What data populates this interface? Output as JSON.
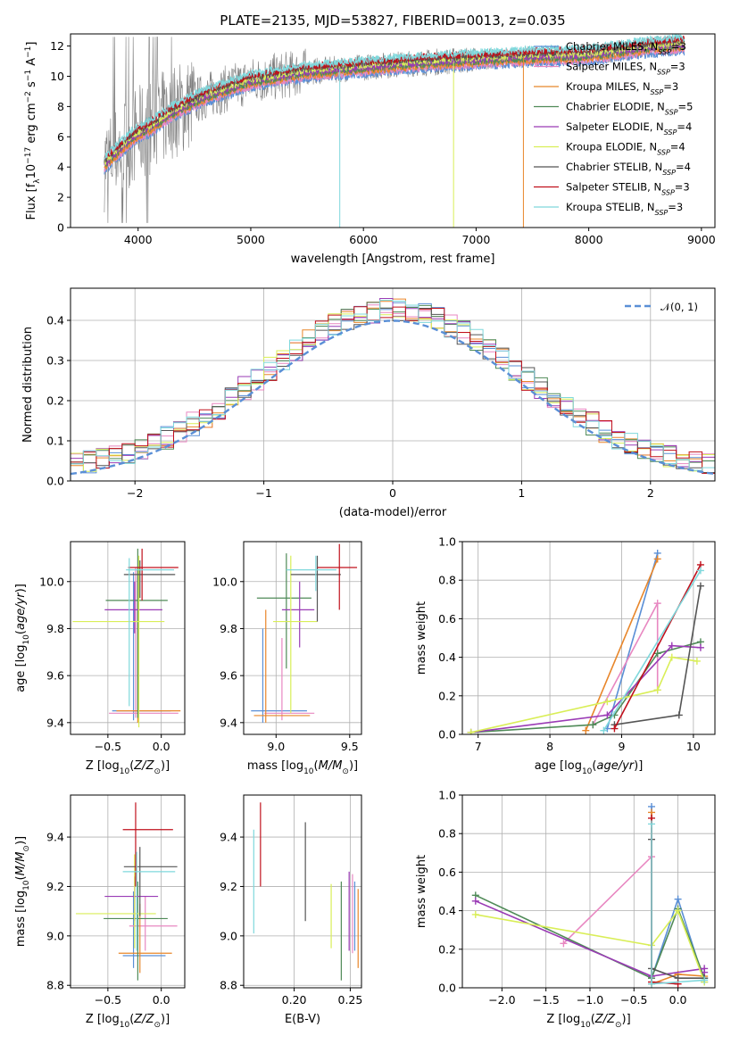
{
  "figure_title": "PLATE=2135, MJD=53827, FIBERID=0013, z=0.035",
  "colors": {
    "Chabrier MILES": "#5a8fd6",
    "Salpeter MILES": "#e887c1",
    "Kroupa MILES": "#e8862a",
    "Chabrier ELODIE": "#4f8a57",
    "Salpeter ELODIE": "#9a3bb5",
    "Kroupa ELODIE": "#d9ee57",
    "Chabrier STELIB": "#555555",
    "Salpeter STELIB": "#c0101c",
    "Kroupa STELIB": "#7fd8dc",
    "data": "#808080",
    "normal": "#5a8fd6"
  },
  "legend": [
    {
      "name": "Chabrier MILES",
      "label": "Chabrier MILES, N",
      "sub": "SSP",
      "tail": "=3"
    },
    {
      "name": "Salpeter MILES",
      "label": "Salpeter MILES, N",
      "sub": "SSP",
      "tail": "=3"
    },
    {
      "name": "Kroupa MILES",
      "label": "Kroupa MILES, N",
      "sub": "SSP",
      "tail": "=3"
    },
    {
      "name": "Chabrier ELODIE",
      "label": "Chabrier ELODIE, N",
      "sub": "SSP",
      "tail": "=5"
    },
    {
      "name": "Salpeter ELODIE",
      "label": "Salpeter ELODIE, N",
      "sub": "SSP",
      "tail": "=4"
    },
    {
      "name": "Kroupa ELODIE",
      "label": "Kroupa ELODIE, N",
      "sub": "SSP",
      "tail": "=4"
    },
    {
      "name": "Chabrier STELIB",
      "label": "Chabrier STELIB, N",
      "sub": "SSP",
      "tail": "=4"
    },
    {
      "name": "Salpeter STELIB",
      "label": "Salpeter STELIB, N",
      "sub": "SSP",
      "tail": "=3"
    },
    {
      "name": "Kroupa STELIB",
      "label": "Kroupa STELIB, N",
      "sub": "SSP",
      "tail": "=3"
    }
  ],
  "hist_legend": {
    "label": "𝒩(0, 1)"
  },
  "chart_data": [
    {
      "id": "spectrum",
      "type": "line",
      "xlabel": "wavelength [Angstrom, rest frame]",
      "ylabel": "Flux [f_λ 10^-17 erg cm^-2 s^-1 A^-1]",
      "xlim": [
        3400,
        9120
      ],
      "ylim": [
        0,
        12.8
      ],
      "xticks": [
        4000,
        5000,
        6000,
        7000,
        8000,
        9000
      ],
      "yticks": [
        0,
        2,
        4,
        6,
        8,
        10,
        12
      ],
      "continuum_model": {
        "x": [
          3700,
          3800,
          3950,
          4100,
          4300,
          4600,
          5000,
          5500,
          6000,
          6500,
          7000,
          7500,
          8000,
          8500,
          8800
        ],
        "y": [
          4.2,
          4.9,
          6.0,
          6.6,
          7.6,
          8.7,
          9.7,
          10.3,
          10.6,
          10.9,
          11.1,
          11.3,
          11.4,
          11.9,
          12.1
        ]
      }
    },
    {
      "id": "residual-histogram",
      "type": "bar",
      "xlabel": "(data-model)/error",
      "ylabel": "Normed distribution",
      "xlim": [
        -2.5,
        2.5
      ],
      "ylim": [
        0,
        0.48
      ],
      "xticks": [
        -2,
        -1,
        0,
        1,
        2
      ],
      "yticks": [
        0,
        0.1,
        0.2,
        0.3,
        0.4
      ],
      "bin_width": 0.1,
      "reference": {
        "name": "𝒩(0, 1)",
        "mu": 0,
        "sigma": 1
      }
    },
    {
      "id": "age-vs-Z",
      "type": "scatter",
      "xlabel": "Z [log10(Z/Zsun)]",
      "ylabel": "age [log10(age/yr)]",
      "xlim": [
        -0.85,
        0.22
      ],
      "ylim": [
        9.35,
        10.17
      ],
      "xticks": [
        -0.5,
        0.0
      ],
      "yticks": [
        9.4,
        9.6,
        9.8,
        10.0
      ],
      "points": [
        {
          "model": "Chabrier MILES",
          "x": -0.26,
          "xerr": [
            0.2,
            0.35
          ],
          "y": 9.45,
          "yerr": [
            0.04,
            0.59
          ]
        },
        {
          "model": "Salpeter MILES",
          "x": -0.24,
          "xerr": [
            0.25,
            0.4
          ],
          "y": 9.44,
          "yerr": [
            0.02,
            0.62
          ]
        },
        {
          "model": "Kroupa MILES",
          "x": -0.22,
          "xerr": [
            0.2,
            0.4
          ],
          "y": 9.45,
          "yerr": [
            0.05,
            0.6
          ]
        },
        {
          "model": "Chabrier ELODIE",
          "x": -0.22,
          "xerr": [
            0.3,
            0.28
          ],
          "y": 9.92,
          "yerr": [
            0.5,
            0.22
          ]
        },
        {
          "model": "Salpeter ELODIE",
          "x": -0.25,
          "xerr": [
            0.28,
            0.26
          ],
          "y": 9.88,
          "yerr": [
            0.1,
            0.12
          ]
        },
        {
          "model": "Kroupa ELODIE",
          "x": -0.21,
          "xerr": [
            0.62,
            0.24
          ],
          "y": 9.83,
          "yerr": [
            0.45,
            0.28
          ]
        },
        {
          "model": "Chabrier STELIB",
          "x": -0.2,
          "xerr": [
            0.15,
            0.33
          ],
          "y": 10.03,
          "yerr": [
            0.1,
            0.06
          ]
        },
        {
          "model": "Salpeter STELIB",
          "x": -0.18,
          "xerr": [
            0.13,
            0.34
          ],
          "y": 10.06,
          "yerr": [
            0.14,
            0.08
          ]
        },
        {
          "model": "Kroupa STELIB",
          "x": -0.3,
          "xerr": [
            0.03,
            0.42
          ],
          "y": 10.05,
          "yerr": [
            0.58,
            0.05
          ]
        }
      ]
    },
    {
      "id": "age-vs-mass",
      "type": "scatter",
      "xlabel": "mass [log10(M/Msun)]",
      "ylabel": "",
      "xlim": [
        8.78,
        9.58
      ],
      "ylim": [
        9.35,
        10.17
      ],
      "xticks": [
        9.0,
        9.5
      ],
      "yticks": [
        9.4,
        9.6,
        9.8,
        10.0
      ],
      "points": [
        {
          "model": "Chabrier MILES",
          "x": 8.91,
          "xerr": [
            0.08,
            0.3
          ],
          "y": 9.45,
          "yerr": [
            0.05,
            0.35
          ]
        },
        {
          "model": "Salpeter MILES",
          "x": 9.04,
          "xerr": [
            0.12,
            0.22
          ],
          "y": 9.44,
          "yerr": [
            0.03,
            0.32
          ]
        },
        {
          "model": "Kroupa MILES",
          "x": 8.93,
          "xerr": [
            0.08,
            0.3
          ],
          "y": 9.43,
          "yerr": [
            0.03,
            0.45
          ]
        },
        {
          "model": "Chabrier ELODIE",
          "x": 9.07,
          "xerr": [
            0.2,
            0.17
          ],
          "y": 9.93,
          "yerr": [
            0.3,
            0.19
          ]
        },
        {
          "model": "Salpeter ELODIE",
          "x": 9.16,
          "xerr": [
            0.12,
            0.1
          ],
          "y": 9.88,
          "yerr": [
            0.16,
            0.12
          ]
        },
        {
          "model": "Kroupa ELODIE",
          "x": 9.1,
          "xerr": [
            0.12,
            0.18
          ],
          "y": 9.83,
          "yerr": [
            0.39,
            0.28
          ]
        },
        {
          "model": "Chabrier STELIB",
          "x": 9.28,
          "xerr": [
            0.18,
            0.16
          ],
          "y": 10.03,
          "yerr": [
            0.2,
            0.08
          ]
        },
        {
          "model": "Salpeter STELIB",
          "x": 9.43,
          "xerr": [
            0.15,
            0.12
          ],
          "y": 10.06,
          "yerr": [
            0.18,
            0.1
          ]
        },
        {
          "model": "Kroupa STELIB",
          "x": 9.27,
          "xerr": [
            0.2,
            0.14
          ],
          "y": 10.05,
          "yerr": [
            0.09,
            0.06
          ]
        }
      ]
    },
    {
      "id": "mass-weight-vs-age",
      "type": "line",
      "xlabel": "age [log10(age/yr)]",
      "ylabel": "mass weight",
      "xlim": [
        6.78,
        10.3
      ],
      "ylim": [
        0,
        1
      ],
      "xticks": [
        7,
        8,
        9,
        10
      ],
      "yticks": [
        0,
        0.2,
        0.4,
        0.6,
        0.8,
        1.0
      ],
      "series": [
        {
          "model": "Chabrier MILES",
          "x": [
            8.8,
            9.5
          ],
          "y": [
            0.03,
            0.94
          ]
        },
        {
          "model": "Salpeter MILES",
          "x": [
            8.6,
            9.5,
            9.5
          ],
          "y": [
            0.05,
            0.68,
            0.23
          ]
        },
        {
          "model": "Kroupa MILES",
          "x": [
            8.5,
            9.5
          ],
          "y": [
            0.02,
            0.91
          ]
        },
        {
          "model": "Chabrier ELODIE",
          "x": [
            6.9,
            8.6,
            8.9,
            9.5,
            10.1
          ],
          "y": [
            0.01,
            0.05,
            0.1,
            0.42,
            0.48
          ]
        },
        {
          "model": "Salpeter ELODIE",
          "x": [
            6.9,
            8.8,
            9.7,
            10.1
          ],
          "y": [
            0.01,
            0.1,
            0.46,
            0.45
          ]
        },
        {
          "model": "Kroupa ELODIE",
          "x": [
            6.9,
            8.8,
            9.5,
            9.7,
            10.05
          ],
          "y": [
            0.01,
            0.17,
            0.23,
            0.4,
            0.38
          ]
        },
        {
          "model": "Chabrier STELIB",
          "x": [
            8.9,
            9.8,
            10.1
          ],
          "y": [
            0.05,
            0.1,
            0.77
          ]
        },
        {
          "model": "Salpeter STELIB",
          "x": [
            8.9,
            10.1
          ],
          "y": [
            0.03,
            0.88
          ]
        },
        {
          "model": "Kroupa STELIB",
          "x": [
            8.75,
            10.1
          ],
          "y": [
            0.02,
            0.85
          ]
        }
      ]
    },
    {
      "id": "mass-vs-Z",
      "type": "scatter",
      "xlabel": "Z [log10(Z/Zsun)]",
      "ylabel": "mass [log10(M/Msun)]",
      "xlim": [
        -0.85,
        0.22
      ],
      "ylim": [
        8.79,
        9.57
      ],
      "xticks": [
        -0.5,
        0.0
      ],
      "yticks": [
        8.8,
        9.0,
        9.2,
        9.4
      ],
      "points": [
        {
          "model": "Chabrier MILES",
          "x": -0.26,
          "xerr": [
            0.1,
            0.3
          ],
          "y": 8.92,
          "yerr": [
            0.05,
            0.26
          ]
        },
        {
          "model": "Salpeter MILES",
          "x": -0.15,
          "xerr": [
            0.15,
            0.3
          ],
          "y": 9.04,
          "yerr": [
            0.1,
            0.12
          ]
        },
        {
          "model": "Kroupa MILES",
          "x": -0.2,
          "xerr": [
            0.2,
            0.3
          ],
          "y": 8.93,
          "yerr": [
            0.08,
            0.2
          ]
        },
        {
          "model": "Chabrier ELODIE",
          "x": -0.22,
          "xerr": [
            0.32,
            0.28
          ],
          "y": 9.07,
          "yerr": [
            0.25,
            0.15
          ]
        },
        {
          "model": "Salpeter ELODIE",
          "x": -0.25,
          "xerr": [
            0.28,
            0.22
          ],
          "y": 9.16,
          "yerr": [
            0.1,
            0.08
          ]
        },
        {
          "model": "Kroupa ELODIE",
          "x": -0.25,
          "xerr": [
            0.55,
            0.2
          ],
          "y": 9.09,
          "yerr": [
            0.14,
            0.24
          ]
        },
        {
          "model": "Chabrier STELIB",
          "x": -0.2,
          "xerr": [
            0.15,
            0.35
          ],
          "y": 9.28,
          "yerr": [
            0.2,
            0.08
          ]
        },
        {
          "model": "Salpeter STELIB",
          "x": -0.24,
          "xerr": [
            0.12,
            0.35
          ],
          "y": 9.43,
          "yerr": [
            0.23,
            0.11
          ]
        },
        {
          "model": "Kroupa STELIB",
          "x": -0.23,
          "xerr": [
            0.13,
            0.36
          ],
          "y": 9.26,
          "yerr": [
            0.32,
            0.08
          ]
        }
      ]
    },
    {
      "id": "mass-vs-EBV",
      "type": "scatter",
      "xlabel": "E(B-V)",
      "ylabel": "",
      "xlim": [
        0.155,
        0.26
      ],
      "ylim": [
        8.79,
        9.57
      ],
      "xticks": [
        0.2,
        0.25
      ],
      "yticks": [
        8.8,
        9.0,
        9.2,
        9.4
      ],
      "points": [
        {
          "model": "Chabrier MILES",
          "x": 0.254,
          "y": 9.09,
          "yerr": [
            0.15,
            0.13
          ]
        },
        {
          "model": "Salpeter MILES",
          "x": 0.252,
          "y": 9.06,
          "yerr": [
            0.13,
            0.19
          ]
        },
        {
          "model": "Kroupa MILES",
          "x": 0.257,
          "y": 9.03,
          "yerr": [
            0.16,
            0.16
          ]
        },
        {
          "model": "Chabrier ELODIE",
          "x": 0.242,
          "y": 9.02,
          "yerr": [
            0.2,
            0.2
          ]
        },
        {
          "model": "Salpeter ELODIE",
          "x": 0.249,
          "y": 9.12,
          "yerr": [
            0.18,
            0.14
          ]
        },
        {
          "model": "Kroupa ELODIE",
          "x": 0.233,
          "y": 9.08,
          "yerr": [
            0.13,
            0.13
          ]
        },
        {
          "model": "Chabrier STELIB",
          "x": 0.21,
          "y": 9.26,
          "yerr": [
            0.2,
            0.2
          ]
        },
        {
          "model": "Salpeter STELIB",
          "x": 0.17,
          "y": 9.37,
          "yerr": [
            0.17,
            0.17
          ]
        },
        {
          "model": "Kroupa STELIB",
          "x": 0.164,
          "y": 9.22,
          "yerr": [
            0.21,
            0.21
          ]
        }
      ]
    },
    {
      "id": "mass-weight-vs-Z",
      "type": "line",
      "xlabel": "Z [log10(Z/Zsun)]",
      "ylabel": "mass weight",
      "xlim": [
        -2.45,
        0.42
      ],
      "ylim": [
        0,
        1
      ],
      "xticks": [
        -2.0,
        -1.5,
        -1.0,
        -0.5,
        0.0
      ],
      "yticks": [
        0,
        0.2,
        0.4,
        0.6,
        0.8,
        1.0
      ],
      "series": [
        {
          "model": "Chabrier MILES",
          "x": [
            -0.3,
            -0.3,
            0.0,
            0.3
          ],
          "y": [
            0.94,
            0.05,
            0.46,
            0.03
          ]
        },
        {
          "model": "Salpeter MILES",
          "x": [
            -1.3,
            -0.3,
            -0.3
          ],
          "y": [
            0.23,
            0.68,
            0.05
          ]
        },
        {
          "model": "Kroupa MILES",
          "x": [
            -0.3,
            -0.3,
            0.0,
            0.3
          ],
          "y": [
            0.91,
            0.02,
            0.07,
            0.06
          ]
        },
        {
          "model": "Chabrier ELODIE",
          "x": [
            -2.3,
            -0.3,
            0.0,
            0.3
          ],
          "y": [
            0.48,
            0.05,
            0.41,
            0.05
          ]
        },
        {
          "model": "Salpeter ELODIE",
          "x": [
            -2.3,
            -0.3,
            0.3,
            0.3
          ],
          "y": [
            0.45,
            0.06,
            0.1,
            0.08
          ]
        },
        {
          "model": "Kroupa ELODIE",
          "x": [
            -2.3,
            -0.3,
            0.0,
            0.3
          ],
          "y": [
            0.38,
            0.22,
            0.4,
            0.03
          ]
        },
        {
          "model": "Chabrier STELIB",
          "x": [
            -0.3,
            -0.3,
            0.0,
            0.3
          ],
          "y": [
            0.77,
            0.1,
            0.05,
            0.05
          ]
        },
        {
          "model": "Salpeter STELIB",
          "x": [
            -0.3,
            -0.3,
            0.0
          ],
          "y": [
            0.88,
            0.03,
            0.02
          ]
        },
        {
          "model": "Kroupa STELIB",
          "x": [
            -0.3,
            -0.3,
            0.3
          ],
          "y": [
            0.85,
            0.02,
            0.04
          ]
        }
      ]
    }
  ]
}
